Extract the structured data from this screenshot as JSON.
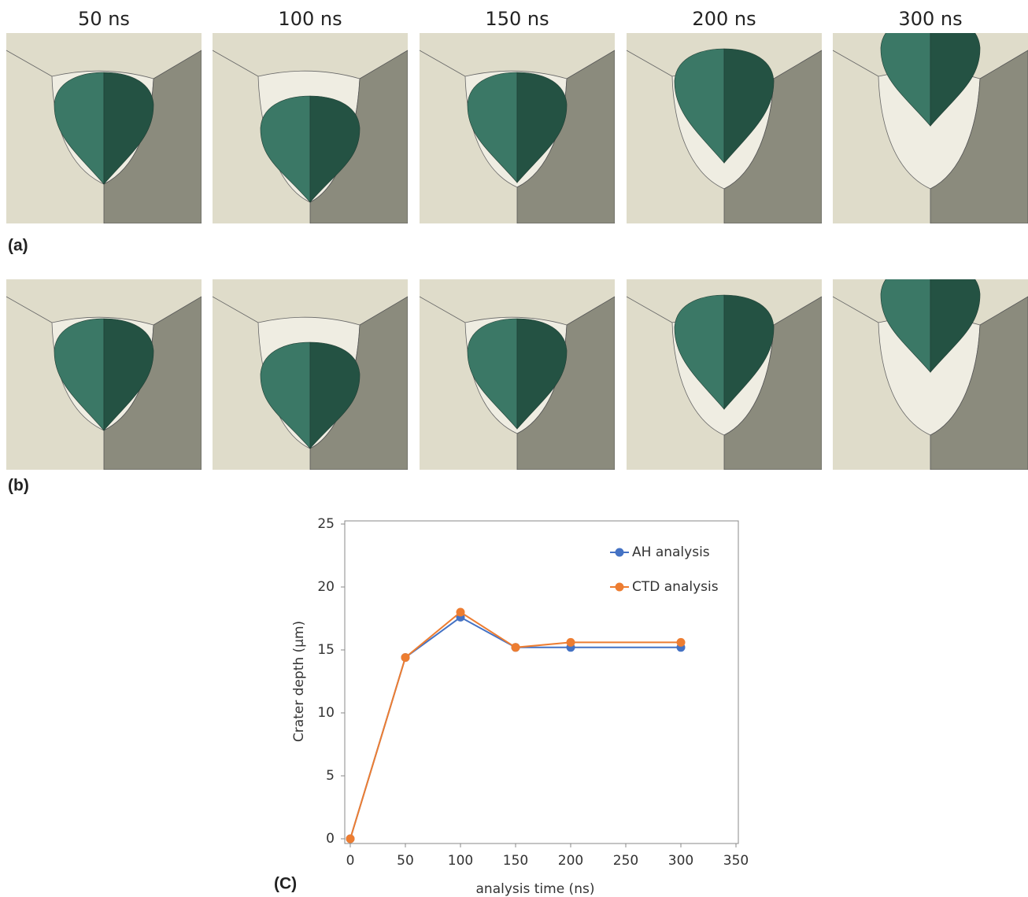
{
  "panels": {
    "times": [
      "50 ns",
      "100 ns",
      "150 ns",
      "200 ns",
      "300 ns"
    ],
    "row_labels": [
      "(a)",
      "(b)"
    ]
  },
  "chart_label": "(C)",
  "chart_data": {
    "type": "line",
    "x_label": "analysis time (ns)",
    "y_label": "Crater depth (µm)",
    "x": [
      0,
      50,
      100,
      150,
      200,
      300
    ],
    "series": [
      {
        "name": "AH analysis",
        "color": "#4472c4",
        "values": [
          0,
          14.4,
          17.6,
          15.2,
          15.2,
          15.2
        ]
      },
      {
        "name": "CTD analysis",
        "color": "#ed7d31",
        "values": [
          0,
          14.4,
          18,
          15.2,
          15.6,
          15.6
        ]
      }
    ],
    "xlim": [
      0,
      350
    ],
    "xticks": [
      0,
      50,
      100,
      150,
      200,
      250,
      300,
      350
    ],
    "ylim": [
      0,
      25
    ],
    "yticks": [
      0,
      5,
      10,
      15,
      20,
      25
    ],
    "grid": false,
    "legend": "upper right"
  }
}
